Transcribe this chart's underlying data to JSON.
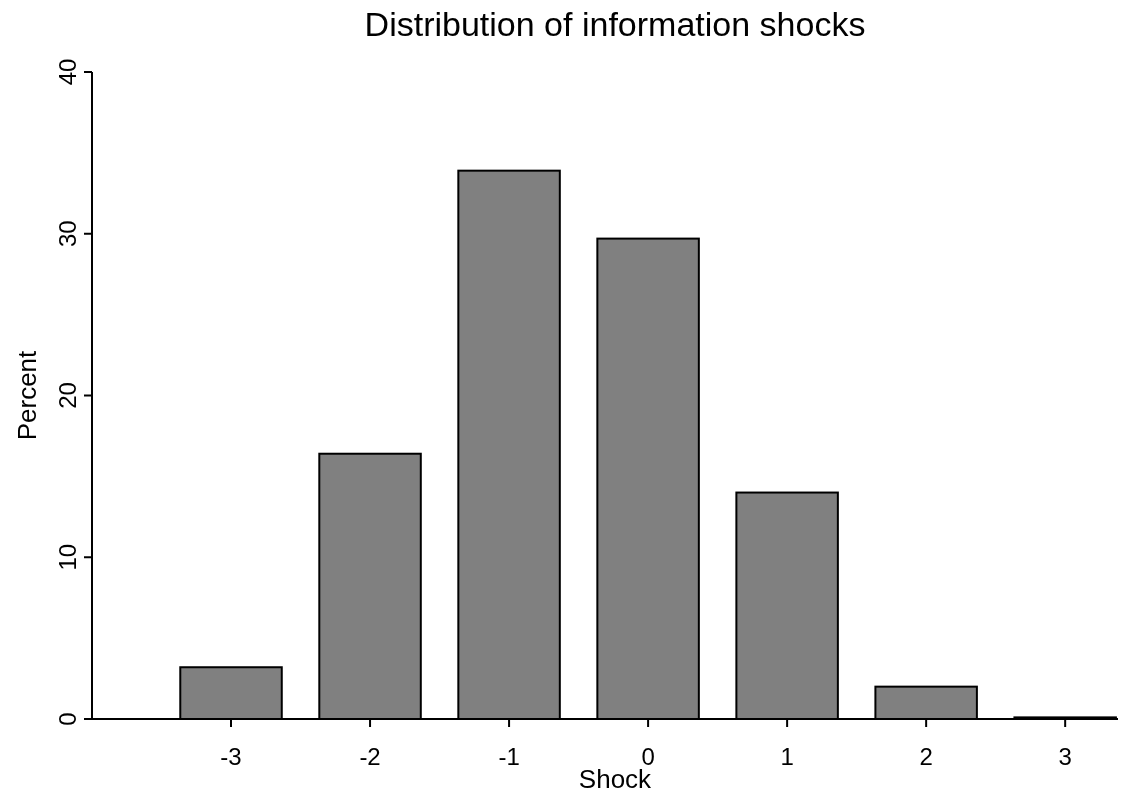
{
  "chart_data": {
    "type": "bar",
    "title": "Distribution of information shocks",
    "xlabel": "Shock",
    "ylabel": "Percent",
    "categories": [
      "-3",
      "-2",
      "-1",
      "0",
      "1",
      "2",
      "3"
    ],
    "values": [
      3.2,
      16.4,
      33.9,
      29.7,
      14.0,
      2.0,
      0.1
    ],
    "color": "#808080",
    "ylim": [
      0,
      40
    ],
    "yticks": [
      0,
      10,
      20,
      30,
      40
    ],
    "grid": false
  }
}
